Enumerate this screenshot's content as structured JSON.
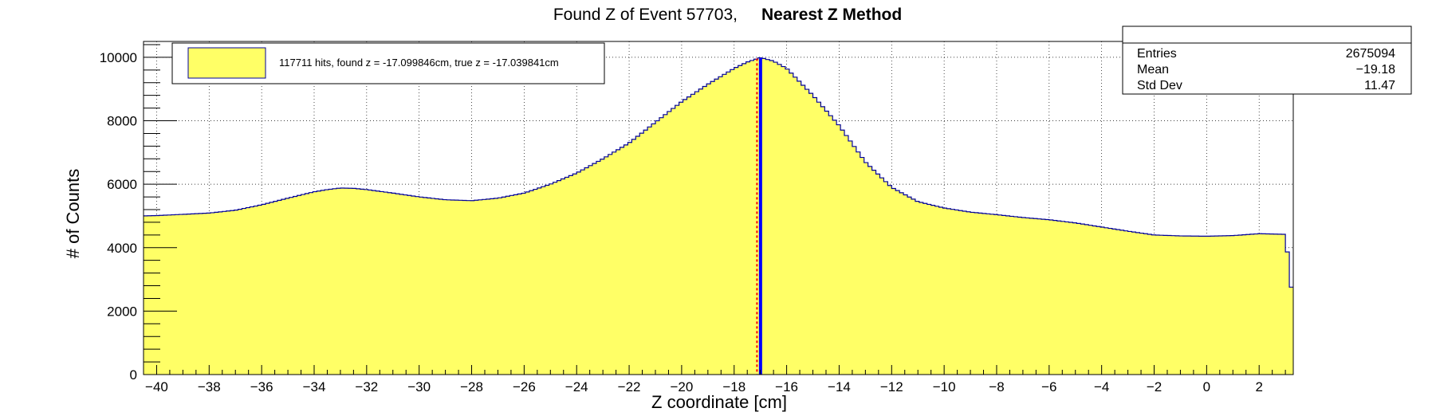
{
  "chart_data": {
    "type": "area",
    "title_prefix": "Found Z of Event 57703,",
    "title_method": "Nearest Z Method",
    "xlabel": "Z coordinate [cm]",
    "ylabel": "# of Counts",
    "xlim": [
      -40.5,
      3.3
    ],
    "ylim": [
      0,
      10500
    ],
    "x_ticks": [
      -40,
      -38,
      -36,
      -34,
      -32,
      -30,
      -28,
      -26,
      -24,
      -22,
      -20,
      -18,
      -16,
      -14,
      -12,
      -10,
      -8,
      -6,
      -4,
      -2,
      0,
      2
    ],
    "y_ticks": [
      0,
      2000,
      4000,
      6000,
      8000,
      10000
    ],
    "grid": true,
    "legend": {
      "position": "top-left",
      "entry": "117711 hits, found z = -17.099846cm, true z = -17.039841cm",
      "fill_color": "#ffff66"
    },
    "stats": {
      "position": "top-right",
      "rows": [
        {
          "label": "Entries",
          "value": "2675094"
        },
        {
          "label": "Mean",
          "value": "−19.18"
        },
        {
          "label": "Std Dev",
          "value": "11.47"
        }
      ]
    },
    "markers": {
      "found_z": -17.099846,
      "true_z": -17.039841,
      "found_color": "#ff0000",
      "true_color": "#0000ff"
    },
    "fill_color": "#ffff66",
    "line_color": "#000099",
    "x": [
      -40.5,
      -40,
      -39,
      -38,
      -37,
      -36,
      -35,
      -34,
      -33.5,
      -33,
      -32.5,
      -32,
      -31,
      -30,
      -29,
      -28,
      -27,
      -26,
      -25,
      -24,
      -23,
      -22,
      -21,
      -20,
      -19,
      -18,
      -17.5,
      -17,
      -16.5,
      -16,
      -15,
      -14,
      -13,
      -12,
      -11,
      -10,
      -9,
      -8,
      -7,
      -6,
      -5,
      -4,
      -3,
      -2,
      -1,
      0,
      1,
      2,
      3,
      3.3
    ],
    "values": [
      5000,
      5010,
      5050,
      5090,
      5180,
      5350,
      5560,
      5760,
      5830,
      5880,
      5870,
      5830,
      5720,
      5600,
      5510,
      5480,
      5560,
      5720,
      6000,
      6350,
      6800,
      7300,
      7950,
      8600,
      9150,
      9650,
      9850,
      9990,
      9880,
      9650,
      8800,
      7850,
      6700,
      5900,
      5450,
      5250,
      5120,
      5040,
      4950,
      4880,
      4780,
      4650,
      4520,
      4400,
      4370,
      4360,
      4380,
      4440,
      4420,
      2200
    ]
  }
}
